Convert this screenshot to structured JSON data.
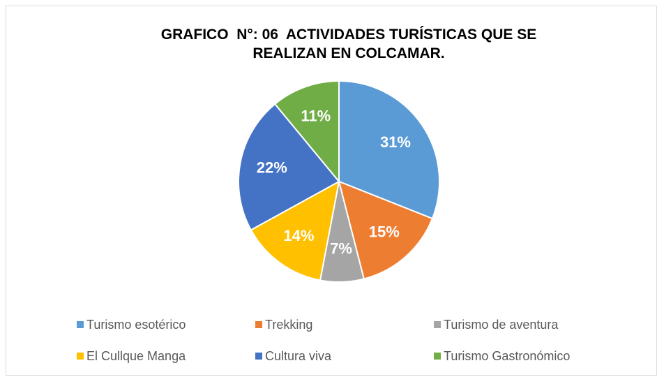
{
  "chart_data": {
    "type": "pie",
    "title": "GRAFICO  N°: 06  ACTIVIDADES TURÍSTICAS QUE SE REALIZAN EN COLCAMAR.",
    "categories": [
      "Turismo esotérico",
      "Trekking",
      "Turismo de aventura",
      "El Cullque Manga",
      "Cultura viva",
      "Turismo Gastronómico"
    ],
    "values": [
      31,
      15,
      7,
      14,
      22,
      11
    ],
    "value_labels": [
      "31%",
      "15%",
      "7%",
      "14%",
      "22%",
      "11%"
    ],
    "colors": [
      "#5b9bd5",
      "#ed7d31",
      "#a5a5a5",
      "#ffc000",
      "#4472c4",
      "#70ad47"
    ],
    "legend": "bottom"
  }
}
